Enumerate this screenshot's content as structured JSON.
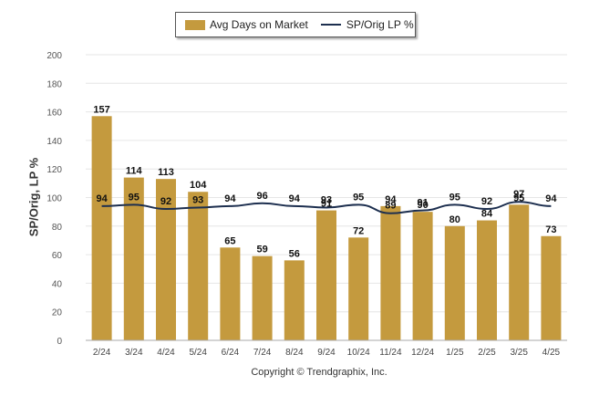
{
  "legend": {
    "bar_label": "Avg Days on Market",
    "line_label": "SP/Orig LP %"
  },
  "copyright": "Copyright © Trendgraphix, Inc.",
  "chart_data": {
    "type": "bar",
    "ylabel": "SP/Orig, LP %",
    "ylim": [
      0,
      200
    ],
    "yticks": [
      0,
      20,
      40,
      60,
      80,
      100,
      120,
      140,
      160,
      180,
      200
    ],
    "grid": true,
    "legend_position": "top",
    "categories": [
      "2/24",
      "3/24",
      "4/24",
      "5/24",
      "6/24",
      "7/24",
      "8/24",
      "9/24",
      "10/24",
      "11/24",
      "12/24",
      "1/25",
      "2/25",
      "3/25",
      "4/25"
    ],
    "series": [
      {
        "name": "Avg Days on Market",
        "type": "bar",
        "color": "#c49a3e",
        "values": [
          157,
          114,
          113,
          104,
          65,
          59,
          56,
          91,
          72,
          94,
          90,
          80,
          84,
          95,
          73
        ]
      },
      {
        "name": "SP/Orig LP %",
        "type": "line",
        "color": "#1d2f4f",
        "values": [
          94,
          95,
          92,
          93,
          94,
          96,
          94,
          93,
          95,
          89,
          91,
          95,
          92,
          97,
          94
        ]
      }
    ]
  }
}
